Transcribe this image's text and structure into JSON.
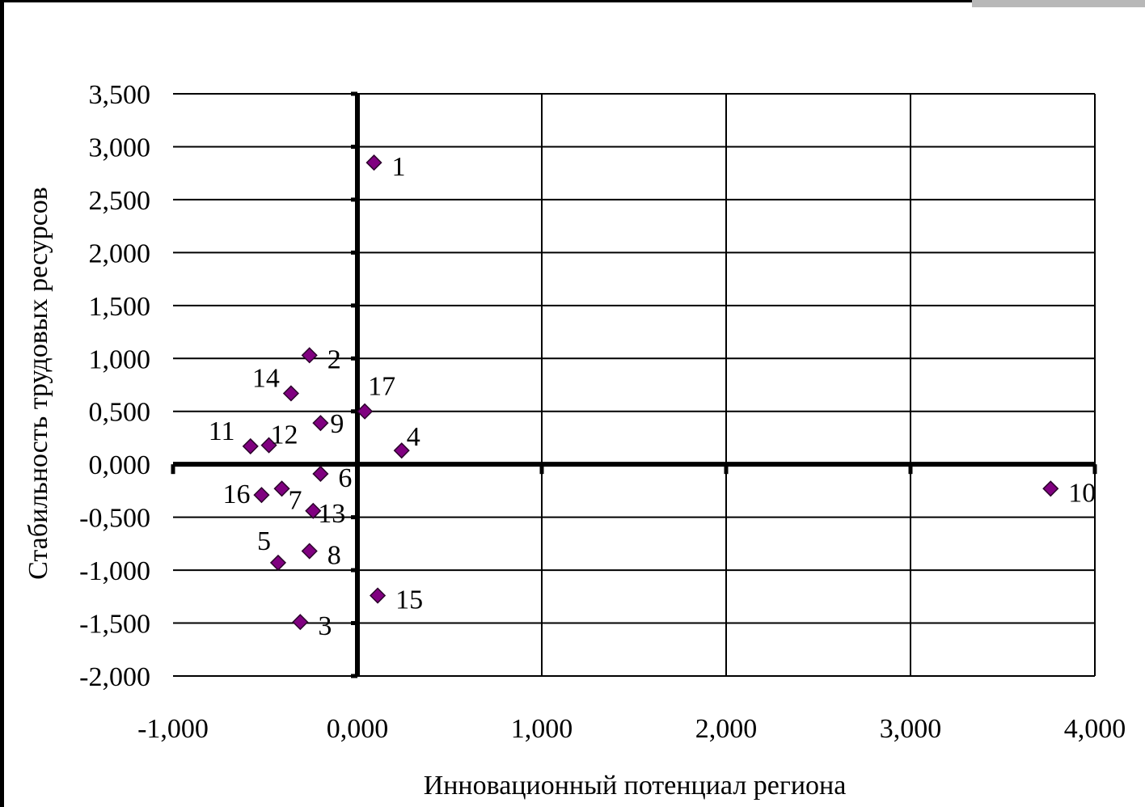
{
  "chart_data": {
    "type": "scatter",
    "title": "",
    "xlabel": "Инновационный потенциал региона",
    "ylabel": "Стабильность трудовых ресурсов",
    "xlim": [
      -1.0,
      4.0
    ],
    "ylim": [
      -2.0,
      3.5
    ],
    "x_ticks": [
      "-1,000",
      "0,000",
      "1,000",
      "2,000",
      "3,000",
      "4,000"
    ],
    "y_ticks": [
      "3,500",
      "3,000",
      "2,500",
      "2,000",
      "1,500",
      "1,000",
      "0,500",
      "0,000",
      "-0,500",
      "-1,000",
      "-1,500",
      "-2,000"
    ],
    "grid": "major, both axes",
    "marker": "diamond",
    "marker_color": "#800080",
    "points": [
      {
        "label": "1",
        "x": 0.09,
        "y": 2.85
      },
      {
        "label": "2",
        "x": -0.26,
        "y": 1.03
      },
      {
        "label": "3",
        "x": -0.31,
        "y": -1.49
      },
      {
        "label": "4",
        "x": 0.24,
        "y": 0.13
      },
      {
        "label": "5",
        "x": -0.43,
        "y": -0.93
      },
      {
        "label": "6",
        "x": -0.2,
        "y": -0.09
      },
      {
        "label": "7",
        "x": -0.41,
        "y": -0.23
      },
      {
        "label": "8",
        "x": -0.26,
        "y": -0.82
      },
      {
        "label": "9",
        "x": -0.2,
        "y": 0.39
      },
      {
        "label": "10",
        "x": 3.76,
        "y": -0.23
      },
      {
        "label": "11",
        "x": -0.58,
        "y": 0.17
      },
      {
        "label": "12",
        "x": -0.48,
        "y": 0.18
      },
      {
        "label": "13",
        "x": -0.24,
        "y": -0.44
      },
      {
        "label": "14",
        "x": -0.36,
        "y": 0.67
      },
      {
        "label": "15",
        "x": 0.11,
        "y": -1.24
      },
      {
        "label": "16",
        "x": -0.52,
        "y": -0.29
      },
      {
        "label": "17",
        "x": 0.04,
        "y": 0.5
      }
    ]
  }
}
